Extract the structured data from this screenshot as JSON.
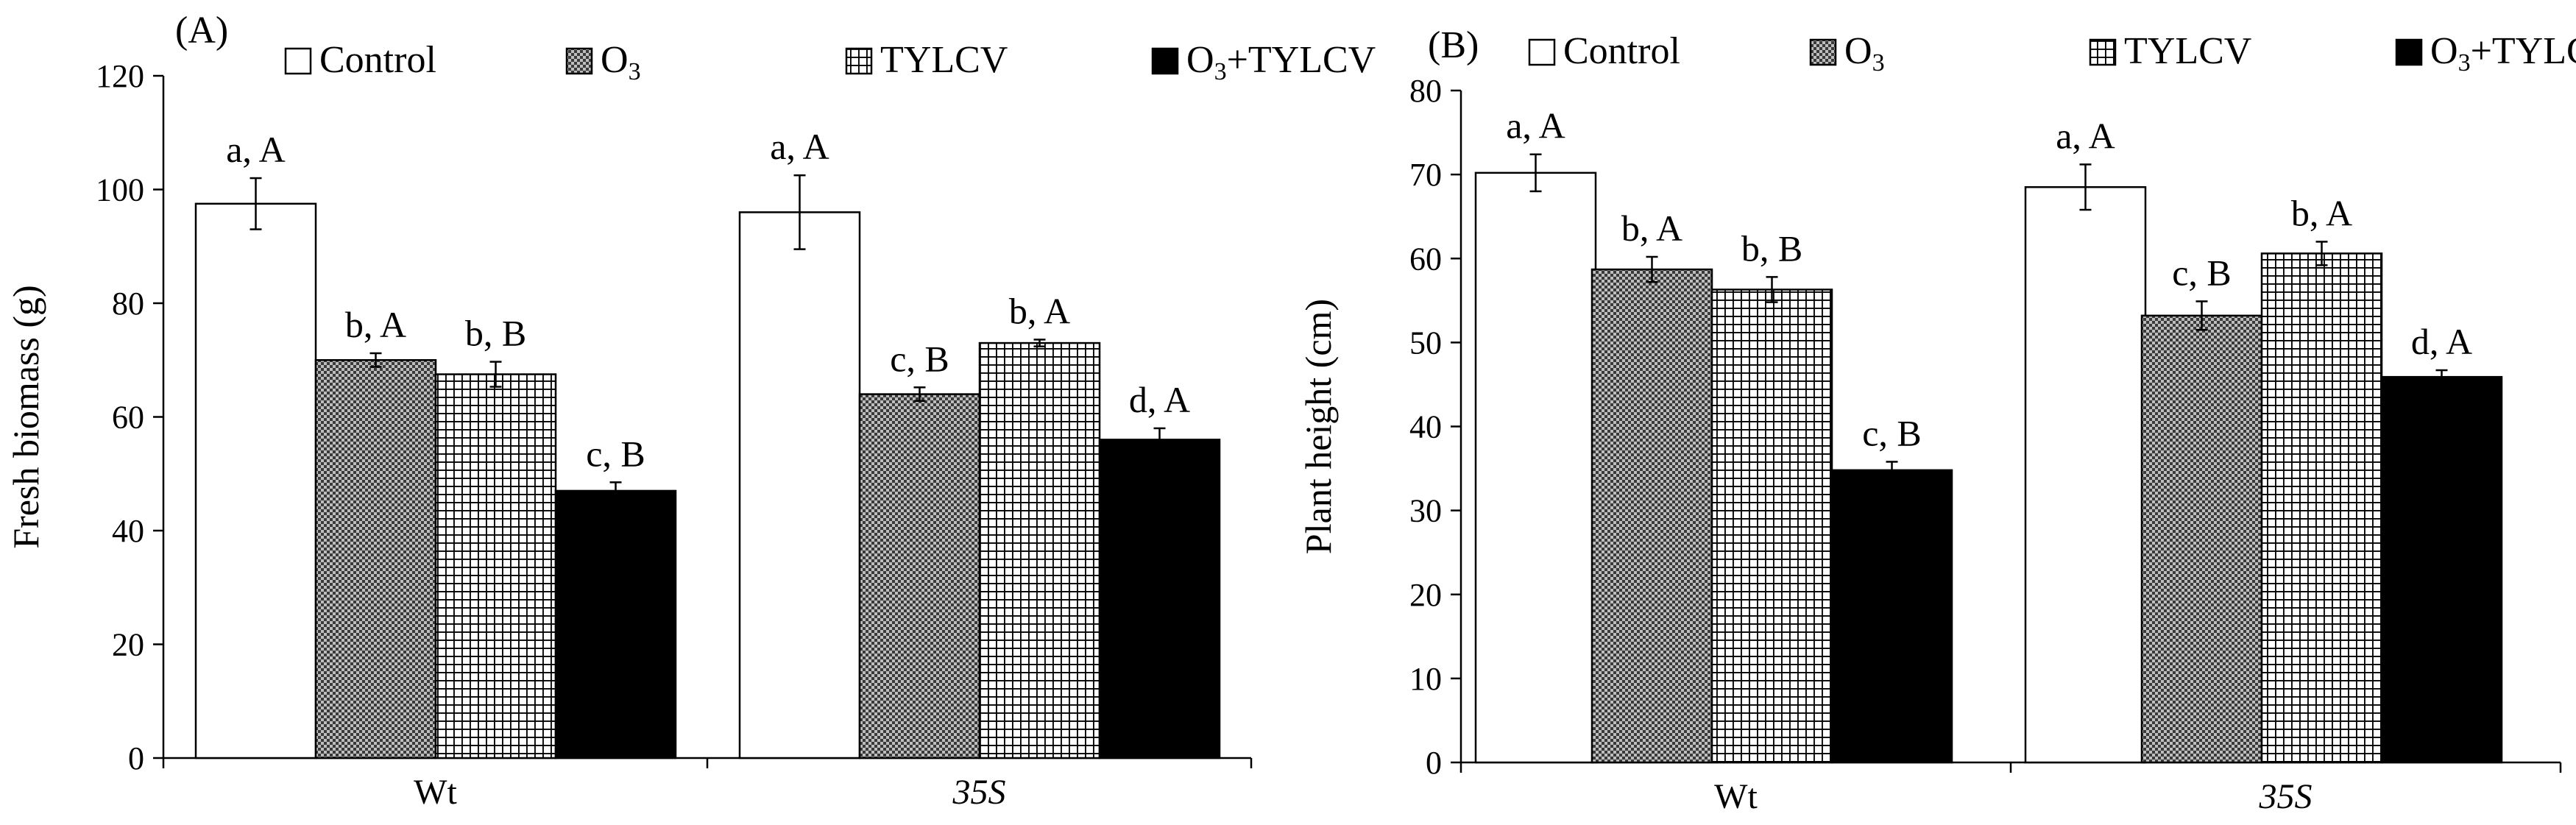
{
  "series_names": [
    "Control",
    "O3",
    "TYLCV",
    "O3+TYLCV"
  ],
  "series_style": [
    {
      "fill": "#ffffff",
      "pattern": "none"
    },
    {
      "fill": "#999999",
      "pattern": "dots"
    },
    {
      "fill": "#ffffff",
      "pattern": "grid"
    },
    {
      "fill": "#000000",
      "pattern": "none"
    }
  ],
  "legend": {
    "items": [
      {
        "main": "Control"
      },
      {
        "main": "O",
        "sub": "3"
      },
      {
        "main": "TYLCV"
      },
      {
        "main": "O",
        "sub": "3",
        "tail": "+TYLCV"
      }
    ]
  },
  "chart_data": [
    {
      "type": "bar",
      "panel_label": "(A)",
      "title": "",
      "xlabel": "",
      "ylabel": "Fresh biomass (g)",
      "ylim": [
        0,
        120
      ],
      "yticks": [
        0,
        20,
        40,
        60,
        80,
        100,
        120
      ],
      "categories": [
        "Wt",
        "35S"
      ],
      "category_italic": [
        false,
        true
      ],
      "series": [
        {
          "name": "Control",
          "values": [
            97.5,
            96
          ],
          "errors": [
            4.5,
            6.5
          ],
          "labels": [
            "a, A",
            "a, A"
          ]
        },
        {
          "name": "O3",
          "values": [
            70,
            64
          ],
          "errors": [
            1.2,
            1.2
          ],
          "labels": [
            "b, A",
            "c, B"
          ]
        },
        {
          "name": "TYLCV",
          "values": [
            67.5,
            73
          ],
          "errors": [
            2.2,
            0.6
          ],
          "labels": [
            "b, B",
            "b, A"
          ]
        },
        {
          "name": "O3+TYLCV",
          "values": [
            47,
            56
          ],
          "errors": [
            1.5,
            2
          ],
          "labels": [
            "c, B",
            "d, A"
          ]
        }
      ]
    },
    {
      "type": "bar",
      "panel_label": "(B)",
      "title": "",
      "xlabel": "",
      "ylabel": "Plant height (cm)",
      "ylim": [
        0,
        80
      ],
      "yticks": [
        0,
        10,
        20,
        30,
        40,
        50,
        60,
        70,
        80
      ],
      "categories": [
        "Wt",
        "35S"
      ],
      "category_italic": [
        false,
        true
      ],
      "series": [
        {
          "name": "Control",
          "values": [
            70.2,
            68.5
          ],
          "errors": [
            2.2,
            2.7
          ],
          "labels": [
            "a, A",
            "a, A"
          ]
        },
        {
          "name": "O3",
          "values": [
            58.7,
            53.2
          ],
          "errors": [
            1.5,
            1.7
          ],
          "labels": [
            "b, A",
            "c, B"
          ]
        },
        {
          "name": "TYLCV",
          "values": [
            56.3,
            60.6
          ],
          "errors": [
            1.5,
            1.4
          ],
          "labels": [
            "b, B",
            "b, A"
          ]
        },
        {
          "name": "O3+TYLCV",
          "values": [
            34.8,
            45.9
          ],
          "errors": [
            1.0,
            0.8
          ],
          "labels": [
            "c, B",
            "d, A"
          ]
        }
      ]
    }
  ]
}
